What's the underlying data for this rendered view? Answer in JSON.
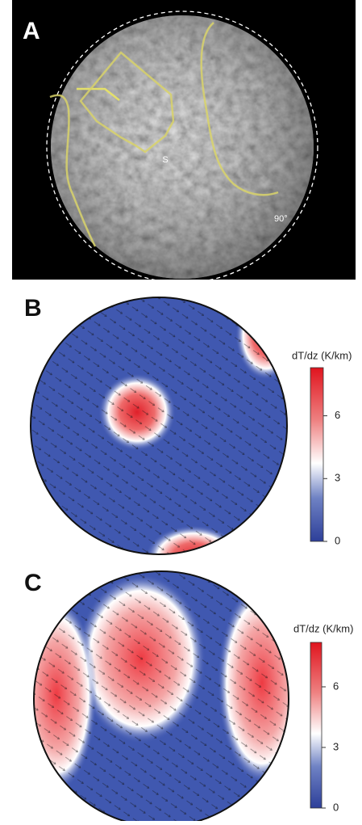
{
  "panels": [
    {
      "label": "A",
      "annotations": [
        "S",
        "90°"
      ]
    },
    {
      "label": "B",
      "colorbar": {
        "title": "dT/dz (K/km)",
        "lim": [
          0,
          8.3
        ],
        "ticks": [
          0,
          3,
          6
        ]
      }
    },
    {
      "label": "C",
      "colorbar": {
        "title": "dT/dz (K/km)",
        "lim": [
          0,
          8.2
        ],
        "ticks": [
          0,
          3,
          6
        ]
      }
    }
  ]
}
